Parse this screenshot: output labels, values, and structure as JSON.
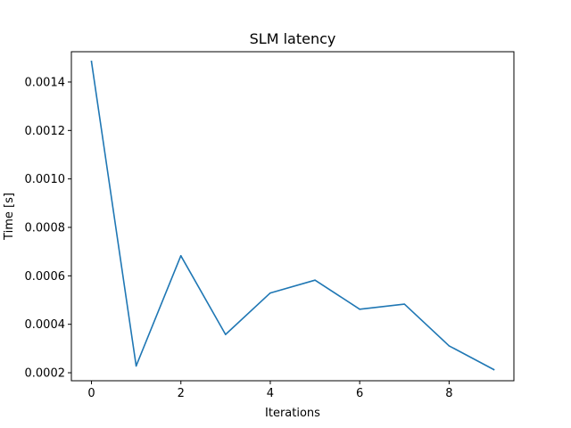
{
  "chart_data": {
    "type": "line",
    "title": "SLM latency",
    "xlabel": "Iterations",
    "ylabel": "Time [s]",
    "xlim": [
      -0.45,
      9.45
    ],
    "ylim": [
      0.000167,
      0.001525
    ],
    "xticks": [
      0,
      2,
      4,
      6,
      8
    ],
    "xtick_labels": [
      "0",
      "2",
      "4",
      "6",
      "8"
    ],
    "yticks": [
      0.0002,
      0.0004,
      0.0006,
      0.0008,
      0.001,
      0.0012,
      0.0014
    ],
    "ytick_labels": [
      "0.0002",
      "0.0004",
      "0.0006",
      "0.0008",
      "0.0010",
      "0.0012",
      "0.0014"
    ],
    "grid": false,
    "series": [
      {
        "color": "#1f77b4",
        "x": [
          0,
          1,
          2,
          3,
          4,
          5,
          6,
          7,
          8,
          9
        ],
        "y": [
          0.001485,
          0.000228,
          0.000683,
          0.000358,
          0.000529,
          0.000582,
          0.000462,
          0.000483,
          0.000311,
          0.000213
        ]
      }
    ]
  }
}
